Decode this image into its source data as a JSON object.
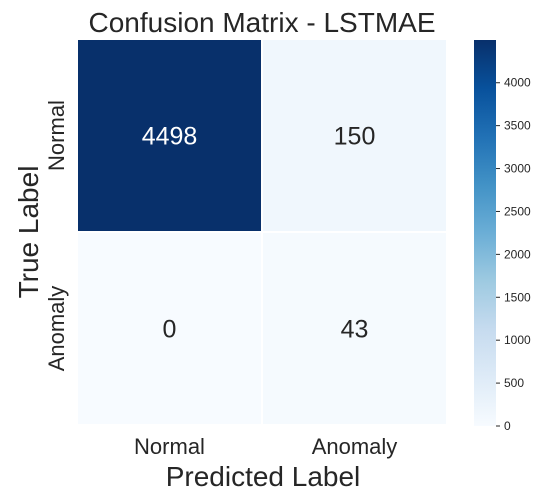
{
  "chart_data": {
    "type": "heatmap",
    "title": "Confusion Matrix - LSTMAE",
    "xlabel": "Predicted Label",
    "ylabel": "True Label",
    "x_categories": [
      "Normal",
      "Anomaly"
    ],
    "y_categories": [
      "Normal",
      "Anomaly"
    ],
    "values": [
      [
        4498,
        150
      ],
      [
        0,
        43
      ]
    ],
    "colormap": "Blues",
    "colorbar": {
      "min": 0,
      "max": 4498,
      "ticks": [
        0,
        500,
        1000,
        1500,
        2000,
        2500,
        3000,
        3500,
        4000
      ]
    },
    "colors": {
      "low": "#f7fbff",
      "high": "#08306b",
      "text_on_dark": "#ffffff",
      "text_on_light": "#262626"
    }
  }
}
